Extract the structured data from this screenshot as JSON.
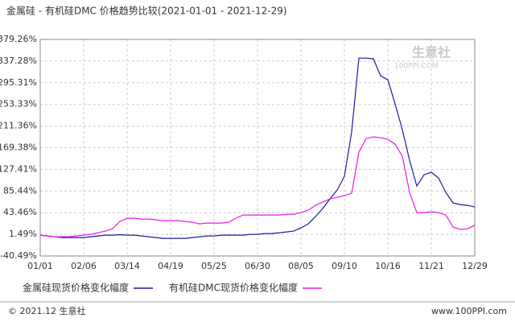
{
  "chart_data": {
    "type": "line",
    "title": "金属硅 - 有机硅DMC 价格趋势比较(2021-01-01 - 2021-12-29)",
    "categories": [
      "01/01",
      null,
      null,
      null,
      null,
      null,
      "02/06",
      null,
      null,
      null,
      null,
      null,
      "03/14",
      null,
      null,
      null,
      null,
      null,
      "04/19",
      null,
      null,
      null,
      null,
      null,
      "05/25",
      null,
      null,
      null,
      null,
      null,
      "06/30",
      null,
      null,
      null,
      null,
      null,
      "08/05",
      null,
      null,
      null,
      null,
      null,
      "09/10",
      null,
      null,
      null,
      null,
      null,
      "10/16",
      null,
      null,
      null,
      null,
      null,
      "11/21",
      null,
      null,
      null,
      null,
      null,
      "12/29"
    ],
    "series": [
      {
        "name": "金属硅现货价格变化幅度",
        "color": "#1a1aa6",
        "values": [
          -0.1,
          -1.6,
          -3.2,
          -4.8,
          -4.8,
          -4.8,
          -4.8,
          -3.2,
          -1.6,
          -0.1,
          -0.1,
          0.7,
          -0.1,
          -0.1,
          -1.6,
          -3.2,
          -4.8,
          -6.3,
          -6.3,
          -6.3,
          -6.3,
          -4.8,
          -3.2,
          -1.6,
          -1.6,
          -0.1,
          -0.1,
          -0.1,
          -0.1,
          1.5,
          1.5,
          3.1,
          3.1,
          4.6,
          6.2,
          7.7,
          14.0,
          21.8,
          35.8,
          51.4,
          70.1,
          87.3,
          113.8,
          199.6,
          343.1,
          343.1,
          341.6,
          308.8,
          301.0,
          254.2,
          204.3,
          145.0,
          95.1,
          116.9,
          121.6,
          110.7,
          82.6,
          62.3,
          59.2,
          57.7,
          54.5
        ]
      },
      {
        "name": "有机硅DMC现货价格变化幅度",
        "color": "#e619e6",
        "values": [
          -0.1,
          -1.6,
          -3.2,
          -3.2,
          -3.2,
          -1.6,
          -0.1,
          1.5,
          4.6,
          7.7,
          12.4,
          26.5,
          32.7,
          32.7,
          31.1,
          31.1,
          29.6,
          28.0,
          28.0,
          28.0,
          26.5,
          24.9,
          21.8,
          23.3,
          23.3,
          23.3,
          24.9,
          32.7,
          38.9,
          38.9,
          38.9,
          38.9,
          38.9,
          38.9,
          40.5,
          40.5,
          43.6,
          48.3,
          57.7,
          63.9,
          70.1,
          73.3,
          76.4,
          81.1,
          160.6,
          187.1,
          190.3,
          188.7,
          185.6,
          176.2,
          152.8,
          82.6,
          43.6,
          43.6,
          45.2,
          43.6,
          38.9,
          15.5,
          10.9,
          12.4,
          18.7
        ]
      }
    ],
    "ylim": [
      -40.49,
      379.26
    ],
    "yticks": [
      {
        "value": -40.49,
        "label": "-40.49%"
      },
      {
        "value": 1.49,
        "label": "1.49%"
      },
      {
        "value": 43.46,
        "label": "43.46%"
      },
      {
        "value": 85.44,
        "label": "85.44%"
      },
      {
        "value": 127.41,
        "label": "127.41%"
      },
      {
        "value": 169.38,
        "label": "169.38%"
      },
      {
        "value": 211.36,
        "label": "211.36%"
      },
      {
        "value": 253.33,
        "label": "253.33%"
      },
      {
        "value": 295.31,
        "label": "295.31%"
      },
      {
        "value": 337.28,
        "label": "337.28%"
      },
      {
        "value": 379.26,
        "label": "379.26%"
      }
    ],
    "grid": true,
    "legend": "bottom",
    "watermark": [
      "生意社",
      "100PPI.COM"
    ],
    "footer": [
      "© 2021.12 生意社",
      "www.100PPI.com"
    ]
  }
}
